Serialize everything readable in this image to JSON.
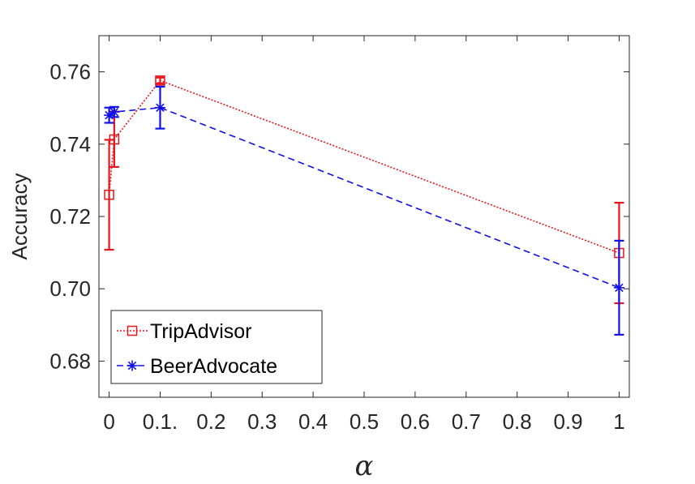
{
  "chart_data": {
    "type": "line",
    "title": "",
    "xlabel": "α",
    "ylabel": "Accuracy",
    "xlim": [
      -0.02,
      1.02
    ],
    "ylim": [
      0.67,
      0.77
    ],
    "xticks": [
      0,
      0.1,
      0.2,
      0.3,
      0.4,
      0.5,
      0.6,
      0.7,
      0.8,
      0.9,
      1
    ],
    "xtick_labels": [
      "0",
      "0.1.",
      "0.2",
      "0.3",
      "0.4",
      "0.5",
      "0.6",
      "0.7",
      "0.8",
      "0.9",
      "1"
    ],
    "yticks": [
      0.68,
      0.7,
      0.72,
      0.74,
      0.76
    ],
    "ytick_labels": [
      "0.68",
      "0.70",
      "0.72",
      "0.74",
      "0.76"
    ],
    "grid": false,
    "legend_position": "bottom-left",
    "series": [
      {
        "name": "TripAdvisor",
        "color": "#e8141b",
        "line_style": "dotted",
        "marker": "square",
        "x": [
          0,
          0.01,
          0.1,
          1
        ],
        "y": [
          0.726,
          0.7413,
          0.7576,
          0.7099
        ],
        "err_low": [
          0.7108,
          0.7337,
          0.7568,
          0.696
        ],
        "err_high": [
          0.7412,
          0.749,
          0.7584,
          0.7238
        ]
      },
      {
        "name": "BeerAdvocate",
        "color": "#1010e8",
        "line_style": "dashed",
        "marker": "asterisk",
        "x": [
          0,
          0.01,
          0.1,
          1
        ],
        "y": [
          0.748,
          0.7489,
          0.7501,
          0.7003
        ],
        "err_low": [
          0.7459,
          0.7475,
          0.7443,
          0.6873
        ],
        "err_high": [
          0.7501,
          0.7503,
          0.7559,
          0.7133
        ]
      }
    ]
  }
}
